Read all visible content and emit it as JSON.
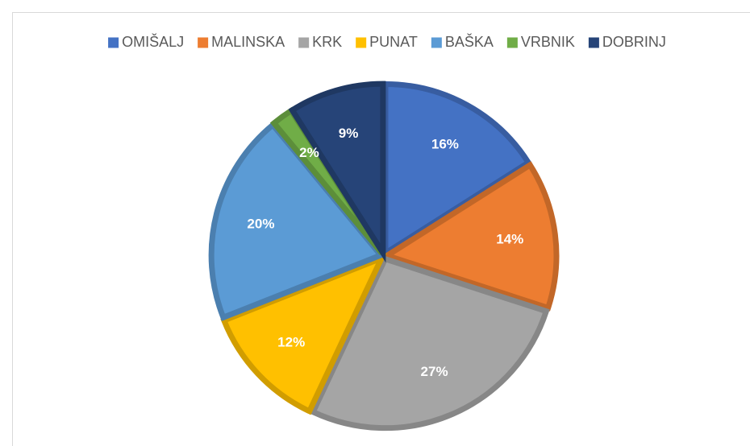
{
  "chart_data": {
    "type": "pie",
    "categories": [
      "OMIŠALJ",
      "MALINSKA",
      "KRK",
      "PUNAT",
      "BAŠKA",
      "VRBNIK",
      "DOBRINJ"
    ],
    "values": [
      16,
      14,
      27,
      12,
      20,
      2,
      9
    ],
    "value_labels": [
      "16%",
      "14%",
      "27%",
      "12%",
      "20%",
      "2%",
      "9%"
    ],
    "colors": [
      "#4472c4",
      "#ed7d31",
      "#a5a5a5",
      "#ffc000",
      "#5b9bd5",
      "#70ad47",
      "#264478"
    ],
    "legend": "top"
  }
}
